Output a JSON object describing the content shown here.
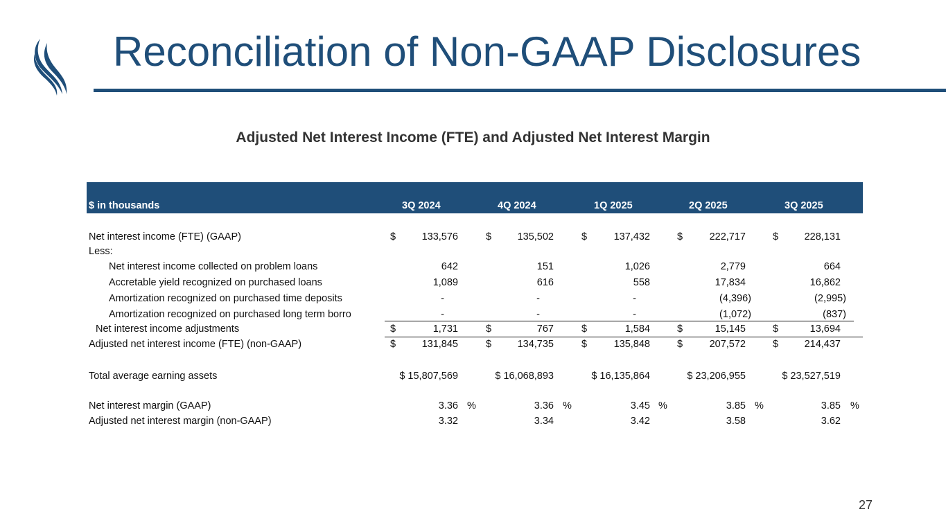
{
  "title": "Reconciliation of Non-GAAP Disclosures",
  "subtitle": "Adjusted Net Interest Income (FTE) and Adjusted Net Interest Margin",
  "colors": {
    "brand": "#1f4e79"
  },
  "table": {
    "label_header": "$ in thousands",
    "periods": [
      "3Q 2024",
      "4Q 2024",
      "1Q 2025",
      "2Q 2025",
      "3Q 2025"
    ],
    "rows": [
      {
        "label": "Net interest income (FTE) (GAAP)",
        "values": [
          "133,576",
          "135,502",
          "137,432",
          "222,717",
          "228,131"
        ],
        "currency": "$"
      },
      {
        "label": "Less:"
      },
      {
        "label": "Net interest income collected on problem loans",
        "values": [
          "642",
          "151",
          "1,026",
          "2,779",
          "664"
        ]
      },
      {
        "label": "Accretable yield recognized on purchased loans",
        "values": [
          "1,089",
          "616",
          "558",
          "17,834",
          "16,862"
        ]
      },
      {
        "label": "Amortization recognized on purchased time deposits",
        "values": [
          "-",
          "-",
          "-",
          "(4,396)",
          "(2,995)"
        ]
      },
      {
        "label": "Amortization recognized on purchased long term borro",
        "values": [
          "-",
          "-",
          "-",
          "(1,072)",
          "(837)"
        ]
      },
      {
        "label": "Net interest income adjustments",
        "values": [
          "1,731",
          "767",
          "1,584",
          "15,145",
          "13,694"
        ],
        "currency": "$"
      },
      {
        "label": "Adjusted net interest income (FTE) (non-GAAP)",
        "values": [
          "131,845",
          "134,735",
          "135,848",
          "207,572",
          "214,437"
        ],
        "currency": "$"
      },
      {
        "label": "Total average earning assets",
        "values": [
          "$ 15,807,569",
          "$ 16,068,893",
          "$ 16,135,864",
          "$ 23,206,955",
          "$ 23,527,519"
        ]
      },
      {
        "label": "Net interest margin (GAAP)",
        "values": [
          "3.36",
          "3.36",
          "3.45",
          "3.85",
          "3.85"
        ],
        "suffix": "%"
      },
      {
        "label": "Adjusted net interest margin (non-GAAP)",
        "values": [
          "3.32",
          "3.34",
          "3.42",
          "3.58",
          "3.62"
        ]
      }
    ]
  },
  "page_number": "27"
}
